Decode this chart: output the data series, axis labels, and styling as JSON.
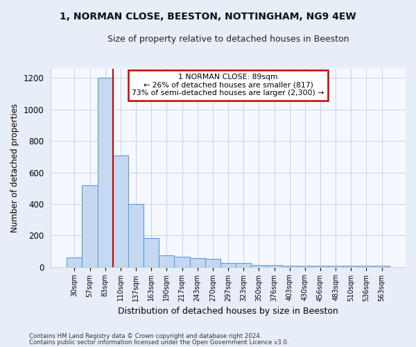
{
  "title1": "1, NORMAN CLOSE, BEESTON, NOTTINGHAM, NG9 4EW",
  "title2": "Size of property relative to detached houses in Beeston",
  "xlabel": "Distribution of detached houses by size in Beeston",
  "ylabel": "Number of detached properties",
  "footnote1": "Contains HM Land Registry data © Crown copyright and database right 2024.",
  "footnote2": "Contains public sector information licensed under the Open Government Licence v3.0.",
  "bin_labels": [
    "30sqm",
    "57sqm",
    "83sqm",
    "110sqm",
    "137sqm",
    "163sqm",
    "190sqm",
    "217sqm",
    "243sqm",
    "270sqm",
    "297sqm",
    "323sqm",
    "350sqm",
    "376sqm",
    "403sqm",
    "430sqm",
    "456sqm",
    "483sqm",
    "510sqm",
    "536sqm",
    "563sqm"
  ],
  "bar_values": [
    60,
    520,
    1200,
    710,
    400,
    185,
    75,
    65,
    55,
    50,
    25,
    25,
    10,
    10,
    5,
    5,
    5,
    5,
    5,
    5,
    5
  ],
  "bar_color": "#c5d8f0",
  "bar_edgecolor": "#5b9bd5",
  "red_line_x": 2.5,
  "annotation_text": "1 NORMAN CLOSE: 89sqm\n← 26% of detached houses are smaller (817)\n73% of semi-detached houses are larger (2,300) →",
  "annotation_box_color": "white",
  "annotation_box_edgecolor": "#cc0000",
  "red_line_color": "#cc0000",
  "ylim": [
    0,
    1260
  ],
  "yticks": [
    0,
    200,
    400,
    600,
    800,
    1000,
    1200
  ],
  "background_color": "#e8eef8",
  "plot_background": "#f5f8ff",
  "grid_color": "#c8d0e0"
}
